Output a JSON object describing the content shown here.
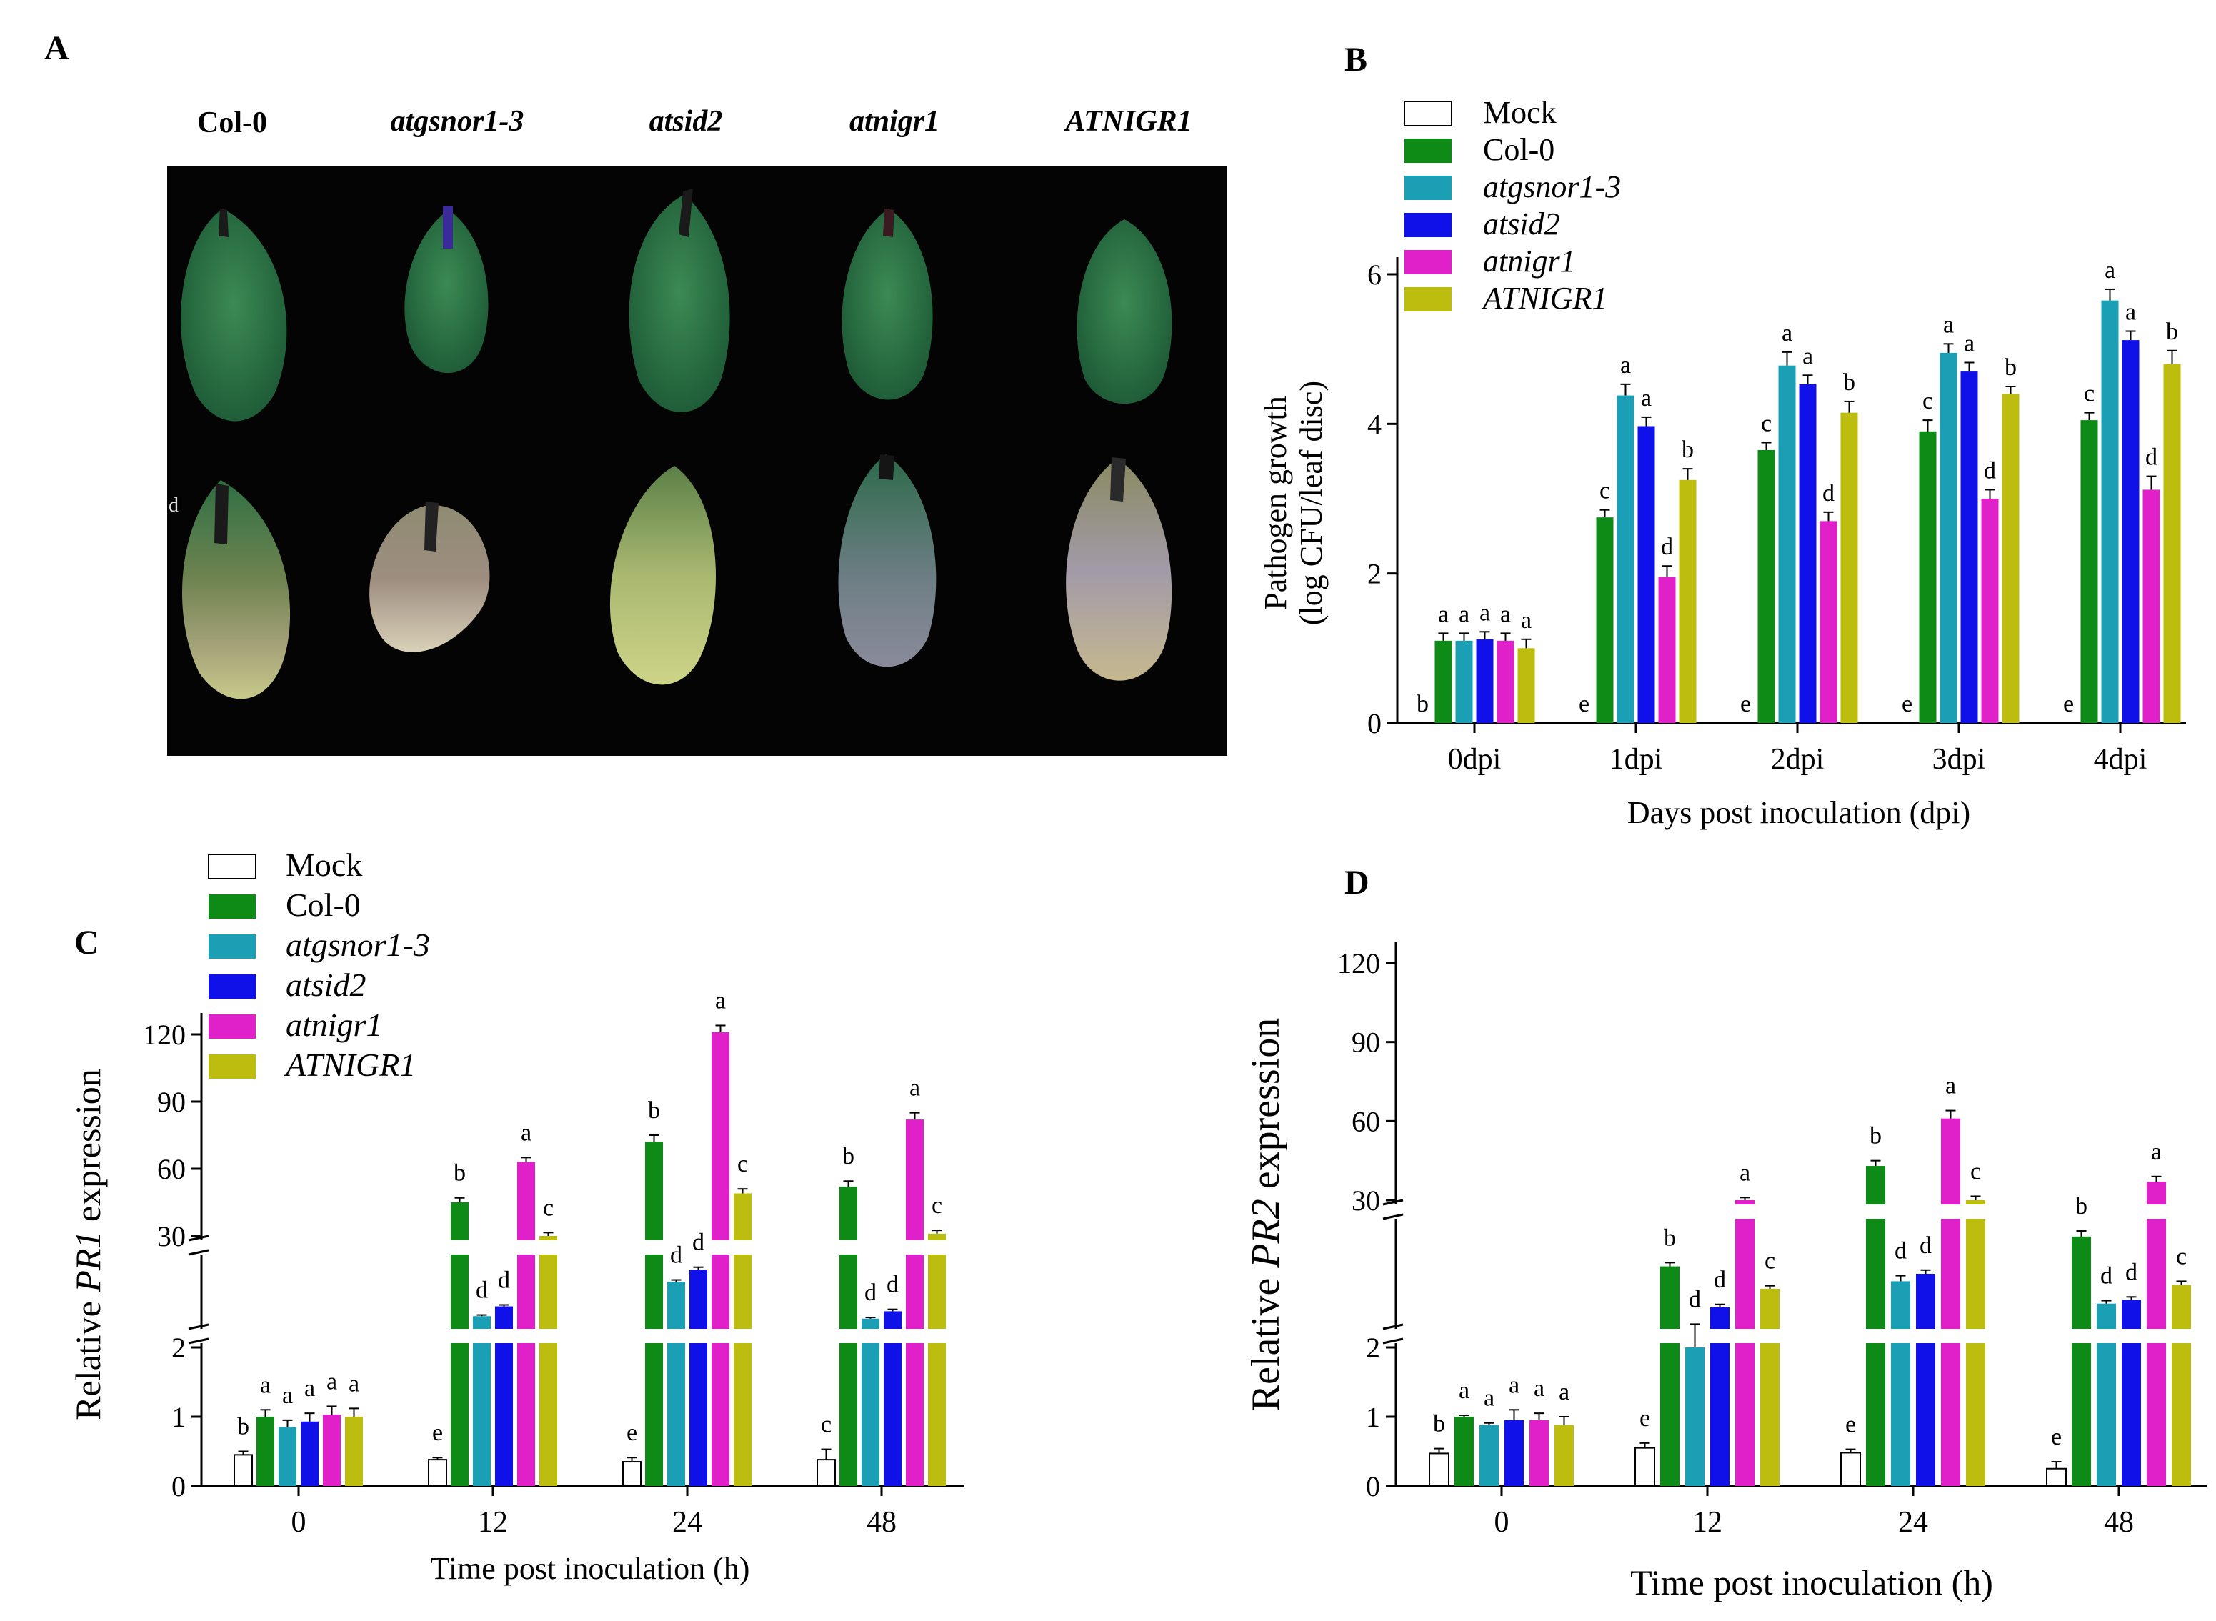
{
  "figure": {
    "panel_labels": {
      "A": "A",
      "B": "B",
      "C": "C",
      "D": "D"
    },
    "genotypes": [
      "Col-0",
      "atgsnor1-3",
      "atsid2",
      "atnigr1",
      "ATNIGR1"
    ],
    "photo_stray_label": "d"
  },
  "colors": {
    "Mock": "#ffffff",
    "Col-0": "#0e8a17",
    "atgsnor1-3": "#1a9fb5",
    "atsid2": "#1010e8",
    "atnigr1": "#e020c8",
    "ATNIGR1": "#bdbd10"
  },
  "chart_data": [
    {
      "id": "B",
      "type": "bar",
      "title": "",
      "xlabel": "Days post inoculation (dpi)",
      "ylabel_lines": [
        "Pathogen growth",
        "(log CFU/leaf disc)"
      ],
      "categories": [
        "0dpi",
        "1dpi",
        "2dpi",
        "3dpi",
        "4dpi"
      ],
      "ylim": [
        0,
        6
      ],
      "yticks": [
        0,
        2,
        4,
        6
      ],
      "legend": [
        "Mock",
        "Col-0",
        "atgsnor1-3",
        "atsid2",
        "atnigr1",
        "ATNIGR1"
      ],
      "legend_italic": [
        false,
        false,
        true,
        true,
        true,
        true
      ],
      "series": [
        {
          "name": "Mock",
          "values": [
            0,
            0,
            0,
            0,
            0
          ],
          "errors": [
            0,
            0,
            0,
            0,
            0
          ],
          "letters": [
            "b",
            "e",
            "e",
            "e",
            "e"
          ]
        },
        {
          "name": "Col-0",
          "values": [
            1.1,
            2.75,
            3.65,
            3.9,
            4.05
          ],
          "errors": [
            0.1,
            0.1,
            0.1,
            0.15,
            0.1
          ],
          "letters": [
            "a",
            "c",
            "c",
            "c",
            "c"
          ]
        },
        {
          "name": "atgsnor1-3",
          "values": [
            1.1,
            4.38,
            4.78,
            4.95,
            5.65
          ],
          "errors": [
            0.1,
            0.15,
            0.18,
            0.12,
            0.15
          ],
          "letters": [
            "a",
            "a",
            "a",
            "a",
            "a"
          ]
        },
        {
          "name": "atsid2",
          "values": [
            1.12,
            3.97,
            4.53,
            4.7,
            5.12
          ],
          "errors": [
            0.1,
            0.12,
            0.12,
            0.12,
            0.12
          ],
          "letters": [
            "a",
            "a",
            "a",
            "a",
            "a"
          ]
        },
        {
          "name": "atnigr1",
          "values": [
            1.1,
            1.95,
            2.7,
            3.0,
            3.12
          ],
          "errors": [
            0.1,
            0.15,
            0.12,
            0.12,
            0.18
          ],
          "letters": [
            "a",
            "d",
            "d",
            "d",
            "d"
          ]
        },
        {
          "name": "ATNIGR1",
          "values": [
            1.0,
            3.25,
            4.15,
            4.4,
            4.8
          ],
          "errors": [
            0.12,
            0.15,
            0.15,
            0.1,
            0.18
          ],
          "letters": [
            "a",
            "b",
            "b",
            "b",
            "b"
          ]
        }
      ]
    },
    {
      "id": "C",
      "type": "bar",
      "title": "",
      "xlabel": "Time post inoculation (h)",
      "ylabel_parts": [
        "Relative ",
        "PR1",
        " expression"
      ],
      "categories": [
        "0",
        "12",
        "24",
        "48"
      ],
      "scale": "broken",
      "lower_ylim": [
        0,
        2
      ],
      "lower_yticks": [
        0,
        1,
        2
      ],
      "upper_ylim": [
        30,
        120
      ],
      "upper_yticks": [
        30,
        60,
        90,
        120
      ],
      "legend": [
        "Mock",
        "Col-0",
        "atgsnor1-3",
        "atsid2",
        "atnigr1",
        "ATNIGR1"
      ],
      "legend_italic": [
        false,
        false,
        true,
        true,
        true,
        true
      ],
      "series": [
        {
          "name": "Mock",
          "values": [
            0.45,
            0.38,
            0.35,
            0.38
          ],
          "errors": [
            0.05,
            0.03,
            0.06,
            0.15
          ],
          "letters": [
            "b",
            "e",
            "e",
            "c"
          ]
        },
        {
          "name": "Col-0",
          "values": [
            1.0,
            45,
            72,
            52
          ],
          "errors": [
            0.1,
            2,
            3,
            2.5
          ],
          "letters": [
            "a",
            "b",
            "b",
            "b"
          ]
        },
        {
          "name": "atgsnor1-3",
          "values": [
            0.85,
            6,
            20,
            5
          ],
          "errors": [
            0.1,
            0.5,
            0.8,
            0.5
          ],
          "letters": [
            "a",
            "d",
            "d",
            "d"
          ]
        },
        {
          "name": "atsid2",
          "values": [
            0.93,
            10,
            25,
            8
          ],
          "errors": [
            0.12,
            0.6,
            1,
            0.8
          ],
          "letters": [
            "a",
            "d",
            "d",
            "d"
          ]
        },
        {
          "name": "atnigr1",
          "values": [
            1.03,
            63,
            121,
            82
          ],
          "errors": [
            0.12,
            2,
            3,
            3
          ],
          "letters": [
            "a",
            "a",
            "a",
            "a"
          ]
        },
        {
          "name": "ATNIGR1",
          "values": [
            1.0,
            30,
            49,
            31
          ],
          "errors": [
            0.12,
            1.5,
            2,
            1.5
          ],
          "letters": [
            "a",
            "c",
            "c",
            "c"
          ]
        }
      ]
    },
    {
      "id": "D",
      "type": "bar",
      "title": "",
      "xlabel": "Time post inoculation (h)",
      "ylabel_parts": [
        "Relative ",
        "PR2",
        " expression"
      ],
      "categories": [
        "0",
        "12",
        "24",
        "48"
      ],
      "scale": "broken",
      "lower_ylim": [
        0,
        2
      ],
      "lower_yticks": [
        0,
        1,
        2
      ],
      "upper_ylim": [
        30,
        120
      ],
      "upper_yticks": [
        30,
        60,
        90,
        120
      ],
      "legend": [],
      "series": [
        {
          "name": "Mock",
          "values": [
            0.47,
            0.55,
            0.48,
            0.25
          ],
          "errors": [
            0.07,
            0.07,
            0.05,
            0.1
          ],
          "letters": [
            "b",
            "e",
            "e",
            "e"
          ]
        },
        {
          "name": "Col-0",
          "values": [
            1.0,
            18,
            43,
            26
          ],
          "errors": [
            0.02,
            1,
            2,
            1.5
          ],
          "letters": [
            "a",
            "b",
            "b",
            "b"
          ]
        },
        {
          "name": "atgsnor1-3",
          "values": [
            0.88,
            2,
            14,
            8
          ],
          "errors": [
            0.03,
            0.5,
            1.5,
            0.8
          ],
          "letters": [
            "a",
            "d",
            "d",
            "d"
          ]
        },
        {
          "name": "atsid2",
          "values": [
            0.95,
            7,
            16,
            9
          ],
          "errors": [
            0.15,
            0.8,
            1,
            0.8
          ],
          "letters": [
            "a",
            "d",
            "d",
            "d"
          ]
        },
        {
          "name": "atnigr1",
          "values": [
            0.95,
            30,
            61,
            37
          ],
          "errors": [
            0.1,
            1,
            3,
            2
          ],
          "letters": [
            "a",
            "a",
            "a",
            "a"
          ]
        },
        {
          "name": "ATNIGR1",
          "values": [
            0.88,
            12,
            30,
            13
          ],
          "errors": [
            0.12,
            0.8,
            1.5,
            1
          ],
          "letters": [
            "a",
            "c",
            "c",
            "c"
          ]
        }
      ]
    }
  ]
}
